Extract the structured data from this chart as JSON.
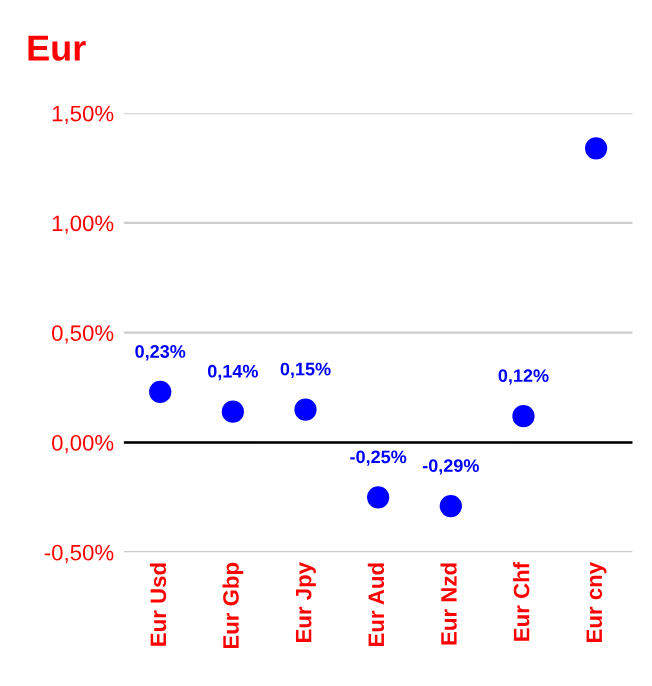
{
  "chart_data": {
    "type": "scatter",
    "title": "Eur",
    "categories": [
      "Eur Usd",
      "Eur Gbp",
      "Eur Jpy",
      "Eur Aud",
      "Eur Nzd",
      "Eur Chf",
      "Eur cny"
    ],
    "series": [
      {
        "color": "#0000ff",
        "values": [
          0.23,
          0.14,
          0.15,
          -0.25,
          -0.29,
          0.12,
          1.34
        ],
        "value_labels": [
          "0,23%",
          "0,14%",
          "0,15%",
          "-0,25%",
          "-0,29%",
          "0,12%",
          null
        ]
      }
    ],
    "ylim": [
      -0.5,
      1.5
    ],
    "yticks": [
      {
        "value": -0.5,
        "label": "-0,50%"
      },
      {
        "value": 0,
        "label": "0,00%"
      },
      {
        "value": 0.5,
        "label": "0,50%"
      },
      {
        "value": 1.0,
        "label": "1,00%"
      },
      {
        "value": 1.5,
        "label": "1,50%"
      }
    ],
    "ref_lines": [
      {
        "axis": "y",
        "value": 0,
        "color": "#000000"
      }
    ],
    "grid": "y",
    "marker": "circle"
  }
}
